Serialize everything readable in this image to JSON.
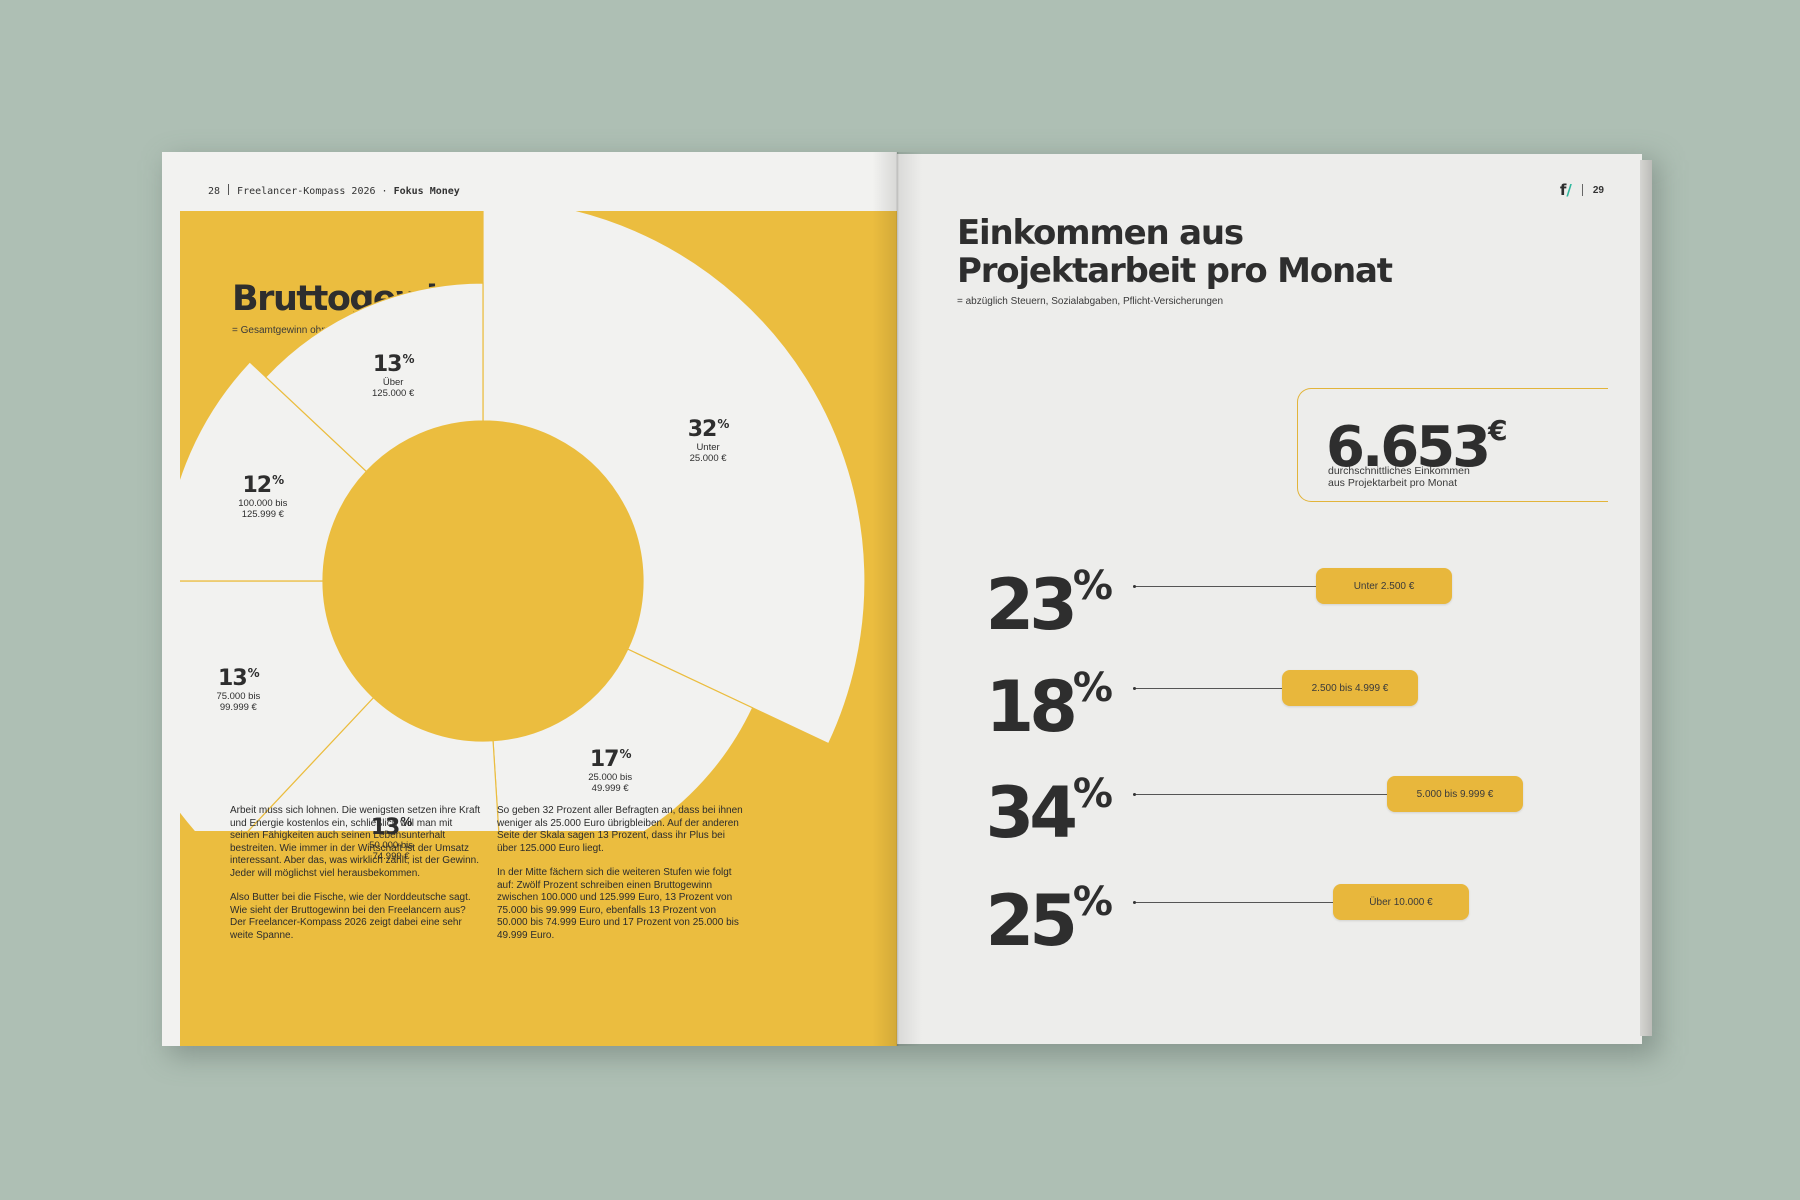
{
  "left_page": {
    "page_number": "28",
    "running_title": "Freelancer-Kompass 2026 ·",
    "running_section": "Fokus Money",
    "title": "Bruttogewinn",
    "subtitle": "= Gesamtgewinn ohne Steuerabzug",
    "column1": [
      "Arbeit muss sich lohnen. Die wenigsten setzen ihre Kraft und Energie kostenlos ein, schließlich will man mit seinen Fähigkeiten auch seinen Lebensunterhalt bestreiten. Wie immer in der Wirtschaft ist der Umsatz interessant. Aber das, was wirklich zählt, ist der Gewinn. Jeder will möglichst viel herausbekommen.",
      "Also Butter bei die Fische, wie der Norddeutsche sagt. Wie sieht der Bruttogewinn bei den Freelancern aus? Der Freelancer-Kompass 2026 zeigt dabei eine sehr weite Spanne."
    ],
    "column2": [
      "So geben 32 Prozent aller Befragten an, dass bei ihnen weniger als 25.000 Euro übrigbleiben. Auf der anderen Seite der Skala sagen 13 Prozent, dass ihr Plus bei über 125.000 Euro liegt.",
      "In der Mitte fächern sich die weiteren Stufen wie folgt auf: Zwölf Prozent schreiben einen Bruttogewinn zwischen 100.000 und 125.999 Euro, 13 Prozent von 75.000 bis 99.999 Euro, ebenfalls 13 Prozent von 50.000 bis 74.999 Euro und 17 Prozent von 25.000 bis 49.999 Euro."
    ]
  },
  "right_page": {
    "page_number": "29",
    "logo": "f",
    "logo_mark": "/",
    "title_line1": "Einkommen aus",
    "title_line2": "Projektarbeit pro Monat",
    "subtitle": "= abzüglich Steuern, Sozialabgaben, Pflicht-Versicherungen",
    "average": {
      "value": "6.653",
      "unit": "€",
      "caption_line1": "durchschnittliches Einkommen",
      "caption_line2": "aus Projektarbeit pro Monat"
    }
  },
  "colors": {
    "yellow": "#ebbd3f",
    "pill": "#e8b73c",
    "dark": "#2e2e2e",
    "logo_accent": "#2fb89e"
  },
  "chart_data": [
    {
      "type": "pie",
      "title": "Bruttogewinn",
      "subtitle": "= Gesamtgewinn ohne Steuerabzug",
      "slices": [
        {
          "pct_label": "32",
          "unit": "%",
          "line1": "Unter",
          "line2": "25.000 €",
          "value": 32
        },
        {
          "pct_label": "17",
          "unit": "%",
          "line1": "25.000 bis",
          "line2": "49.999 €",
          "value": 17
        },
        {
          "pct_label": "13",
          "unit": "%",
          "line1": "50.000 bis",
          "line2": "74.999 €",
          "value": 13
        },
        {
          "pct_label": "13",
          "unit": "%",
          "line1": "75.000 bis",
          "line2": "99.999 €",
          "value": 13
        },
        {
          "pct_label": "12",
          "unit": "%",
          "line1": "100.000 bis",
          "line2": "125.999 €",
          "value": 12
        },
        {
          "pct_label": "13",
          "unit": "%",
          "line1": "Über",
          "line2": "125.000 €",
          "value": 13
        }
      ]
    },
    {
      "type": "bar",
      "title": "Einkommen aus Projektarbeit pro Monat",
      "categories": [
        "Unter 2.500 €",
        "2.500 bis 4.999 €",
        "5.000 bis 9.999 €",
        "Über 10.000 €"
      ],
      "values": [
        23,
        18,
        34,
        25
      ],
      "value_labels": [
        "23",
        "18",
        "34",
        "25"
      ],
      "unit": "%"
    }
  ]
}
